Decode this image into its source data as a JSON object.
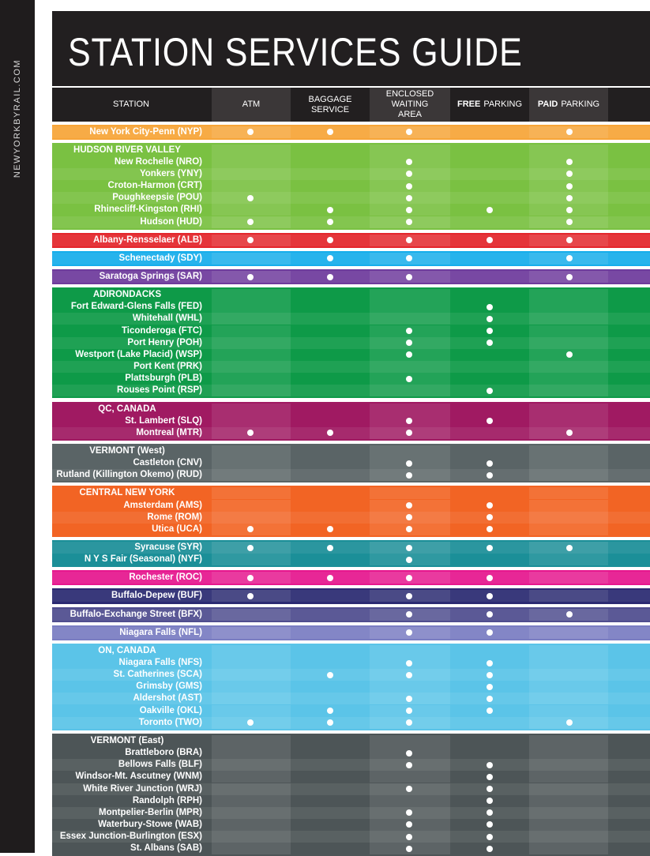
{
  "site": "NEWYORKBYRAIL.COM",
  "title": "STATION SERVICES GUIDE",
  "columns": {
    "station": "STATION",
    "atm": "ATM",
    "baggage": "BAGGAGE SERVICE",
    "waiting_line1": "ENCLOSED WAITING",
    "waiting_line2": "AREA",
    "free_bold": "FREE",
    "free_rest": "PARKING",
    "paid_bold": "PAID",
    "paid_rest": "PARKING"
  },
  "groups": [
    {
      "color": "#f7a539",
      "rows": [
        {
          "label": "New York City-Penn (NYP)",
          "s": [
            1,
            1,
            1,
            0,
            1
          ]
        }
      ]
    },
    {
      "color": "#7ac142",
      "heading": "HUDSON RIVER VALLEY",
      "rows": [
        {
          "label": "New Rochelle (NRO)",
          "s": [
            0,
            0,
            1,
            0,
            1
          ]
        },
        {
          "label": "Yonkers (YNY)",
          "s": [
            0,
            0,
            1,
            0,
            1
          ]
        },
        {
          "label": "Croton-Harmon (CRT)",
          "s": [
            0,
            0,
            1,
            0,
            1
          ]
        },
        {
          "label": "Poughkeepsie (POU)",
          "s": [
            1,
            0,
            1,
            0,
            1
          ]
        },
        {
          "label": "Rhinecliff-Kingston (RHI)",
          "s": [
            0,
            1,
            1,
            1,
            1
          ]
        },
        {
          "label": "Hudson (HUD)",
          "s": [
            1,
            1,
            1,
            0,
            1
          ]
        }
      ]
    },
    {
      "color": "#e4262c",
      "rows": [
        {
          "label": "Albany-Rensselaer (ALB)",
          "s": [
            1,
            1,
            1,
            1,
            1
          ]
        }
      ]
    },
    {
      "color": "#16aeeb",
      "rows": [
        {
          "label": "Schenectady (SDY)",
          "s": [
            0,
            1,
            1,
            0,
            1
          ]
        }
      ]
    },
    {
      "color": "#6e3b9c",
      "rows": [
        {
          "label": "Saratoga Springs (SAR)",
          "s": [
            1,
            1,
            1,
            0,
            1
          ]
        }
      ]
    },
    {
      "color": "#0e9a48",
      "heading": "ADIRONDACKS",
      "rows": [
        {
          "label": "Fort Edward-Glens Falls (FED)",
          "s": [
            0,
            0,
            0,
            1,
            0
          ]
        },
        {
          "label": "Whitehall (WHL)",
          "s": [
            0,
            0,
            0,
            1,
            0
          ]
        },
        {
          "label": "Ticonderoga (FTC)",
          "s": [
            0,
            0,
            1,
            1,
            0
          ]
        },
        {
          "label": "Port Henry (POH)",
          "s": [
            0,
            0,
            1,
            1,
            0
          ]
        },
        {
          "label": "Westport (Lake Placid) (WSP)",
          "s": [
            0,
            0,
            1,
            0,
            1
          ]
        },
        {
          "label": "Port Kent (PRK)",
          "s": [
            0,
            0,
            0,
            0,
            0
          ]
        },
        {
          "label": "Plattsburgh (PLB)",
          "s": [
            0,
            0,
            1,
            0,
            0
          ]
        },
        {
          "label": "Rouses Point (RSP)",
          "s": [
            0,
            0,
            0,
            1,
            0
          ]
        }
      ]
    },
    {
      "color": "#a01a62",
      "heading": "QC, CANADA",
      "rows": [
        {
          "label": "St. Lambert (SLQ)",
          "s": [
            0,
            0,
            1,
            1,
            0
          ]
        },
        {
          "label": "Montreal (MTR)",
          "s": [
            1,
            1,
            1,
            0,
            1
          ]
        }
      ]
    },
    {
      "color": "#5a6466",
      "heading": "VERMONT (West)",
      "rows": [
        {
          "label": "Castleton (CNV)",
          "s": [
            0,
            0,
            1,
            1,
            0
          ]
        },
        {
          "label": "Rutland (Killington Okemo) (RUD)",
          "s": [
            0,
            0,
            1,
            1,
            0
          ]
        }
      ]
    },
    {
      "color": "#f26424",
      "heading": "CENTRAL NEW YORK",
      "rows": [
        {
          "label": "Amsterdam (AMS)",
          "s": [
            0,
            0,
            1,
            1,
            0
          ]
        },
        {
          "label": "Rome (ROM)",
          "s": [
            0,
            0,
            1,
            1,
            0
          ]
        },
        {
          "label": "Utica (UCA)",
          "s": [
            1,
            1,
            1,
            1,
            0
          ]
        }
      ]
    },
    {
      "color": "#1b8f98",
      "rows": [
        {
          "label": "Syracuse (SYR)",
          "s": [
            1,
            1,
            1,
            1,
            1
          ]
        },
        {
          "label": "N Y S Fair (Seasonal) (NYF)",
          "s": [
            0,
            0,
            1,
            0,
            0
          ]
        }
      ]
    },
    {
      "color": "#e6178e",
      "rows": [
        {
          "label": "Rochester (ROC)",
          "s": [
            1,
            1,
            1,
            1,
            0
          ]
        }
      ]
    },
    {
      "color": "#2b2a72",
      "rows": [
        {
          "label": "Buffalo-Depew (BUF)",
          "s": [
            1,
            0,
            1,
            1,
            0
          ]
        }
      ]
    },
    {
      "color": "#4f4d8e",
      "rows": [
        {
          "label": "Buffalo-Exchange Street (BFX)",
          "s": [
            0,
            0,
            1,
            1,
            1
          ]
        }
      ]
    },
    {
      "color": "#7a7dc2",
      "rows": [
        {
          "label": "Niagara Falls (NFL)",
          "s": [
            0,
            0,
            1,
            1,
            0
          ]
        }
      ]
    },
    {
      "color": "#5bc4e8",
      "heading": "ON, CANADA",
      "rows": [
        {
          "label": "Niagara Falls (NFS)",
          "s": [
            0,
            0,
            1,
            1,
            0
          ]
        },
        {
          "label": "St. Catherines (SCA)",
          "s": [
            0,
            1,
            1,
            1,
            0
          ]
        },
        {
          "label": "Grimsby (GMS)",
          "s": [
            0,
            0,
            0,
            1,
            0
          ]
        },
        {
          "label": "Aldershot (AST)",
          "s": [
            0,
            0,
            1,
            1,
            0
          ]
        },
        {
          "label": "Oakville (OKL)",
          "s": [
            0,
            1,
            1,
            1,
            0
          ]
        },
        {
          "label": "Toronto (TWO)",
          "s": [
            1,
            1,
            1,
            0,
            1
          ]
        }
      ]
    },
    {
      "color": "#4d5557",
      "heading": "VERMONT (East)",
      "rows": [
        {
          "label": "Brattleboro (BRA)",
          "s": [
            0,
            0,
            1,
            0,
            0
          ]
        },
        {
          "label": "Bellows Falls (BLF)",
          "s": [
            0,
            0,
            1,
            1,
            0
          ]
        },
        {
          "label": "Windsor-Mt. Ascutney (WNM)",
          "s": [
            0,
            0,
            0,
            1,
            0
          ]
        },
        {
          "label": "White River Junction (WRJ)",
          "s": [
            0,
            0,
            1,
            1,
            0
          ]
        },
        {
          "label": "Randolph (RPH)",
          "s": [
            0,
            0,
            0,
            1,
            0
          ]
        },
        {
          "label": "Montpelier-Berlin (MPR)",
          "s": [
            0,
            0,
            1,
            1,
            0
          ]
        },
        {
          "label": "Waterbury-Stowe (WAB)",
          "s": [
            0,
            0,
            1,
            1,
            0
          ]
        },
        {
          "label": "Essex Junction-Burlington (ESX)",
          "s": [
            0,
            0,
            1,
            1,
            0
          ]
        },
        {
          "label": "St. Albans (SAB)",
          "s": [
            0,
            0,
            1,
            1,
            0
          ]
        }
      ]
    }
  ]
}
